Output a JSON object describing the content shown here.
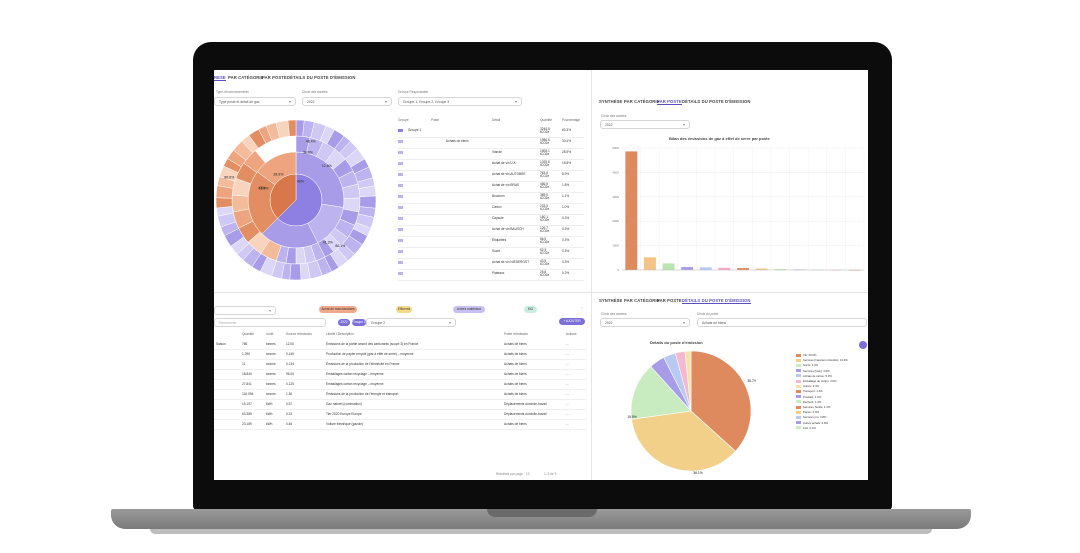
{
  "colors": {
    "purple": "#a89ce8",
    "purple_dark": "#7c6fd8",
    "orange": "#de8a5e",
    "orange_light": "#f2b795",
    "accent": "#5b4fc4"
  },
  "left": {
    "tabs": [
      "RESE",
      "PAR CATÉGORIE",
      "PAR POSTE",
      "DÉTAILS DU POSTE D'ÉMISSION"
    ],
    "filters": [
      {
        "label": "Type d'environnements",
        "value": "Type poste et détail de gaz"
      },
      {
        "label": "Choix des années",
        "value": "2022"
      },
      {
        "label": "Groupe Responsable",
        "value": "Groupe 1, Groupe 2, Groupe 3"
      }
    ],
    "sunburst_labels": [
      "86.1%",
      "48.4%",
      "40%",
      "43%",
      "41.3%",
      "16.8%",
      "12.6%",
      "38.6%",
      "28.9%",
      "88.8%"
    ],
    "table": {
      "headers": [
        "Groupe",
        "Poste",
        "Détail",
        "Quantité",
        "Pourcentage"
      ],
      "rows": [
        {
          "group": "Groupe 1",
          "poste": "",
          "detail": "",
          "qty": "3245.5 tCO2e",
          "pct": "60.3%"
        },
        {
          "group": "",
          "poste": "Achats de biens",
          "detail": "",
          "qty": "1986.6 tCO2e",
          "pct": "30.4%"
        },
        {
          "group": "",
          "poste": "",
          "detail": "Viande",
          "qty": "1508.1 tCO2e",
          "pct": "28.5%"
        },
        {
          "group": "",
          "poste": "",
          "detail": "Achat de vin U.K.",
          "qty": "1025.6 tCO2e",
          "pct": "15.8%"
        },
        {
          "group": "",
          "poste": "",
          "detail": "Achat de vin AUTOBRE",
          "qty": "763.6 tCO2e",
          "pct": "8.9%"
        },
        {
          "group": "",
          "poste": "",
          "detail": "Achat de vin BRAS",
          "qty": "456.5 tCO2e",
          "pct": "1.8%"
        },
        {
          "group": "",
          "poste": "",
          "detail": "Bouchon",
          "qty": "389.5 tCO2e",
          "pct": "1.1%"
        },
        {
          "group": "",
          "poste": "",
          "detail": "Carton",
          "qty": "233.5 tCO2e",
          "pct": "1.0%"
        },
        {
          "group": "",
          "poste": "",
          "detail": "Capsule",
          "qty": "160.1 tCO2e",
          "pct": "0.3%"
        },
        {
          "group": "",
          "poste": "",
          "detail": "Achat de vin BAUSCH",
          "qty": "126.7 tCO2e",
          "pct": "0.3%"
        },
        {
          "group": "",
          "poste": "",
          "detail": "Étiquettes",
          "qty": "66.5 tCO2e",
          "pct": "0.3%"
        },
        {
          "group": "",
          "poste": "",
          "detail": "Sucre",
          "qty": "52.3 tCO2e",
          "pct": "0.3%"
        },
        {
          "group": "",
          "poste": "",
          "detail": "Achat de vin NIEDERGST",
          "qty": "43.5 tCO2e",
          "pct": "0.3%"
        },
        {
          "group": "",
          "poste": "",
          "detail": "Plateaux",
          "qty": "25.8 tCO2e",
          "pct": "0.2%"
        }
      ]
    },
    "bottom": {
      "chips": [
        "Achat de marchandises",
        "Effluents",
        "Autres matériaux",
        "MG"
      ],
      "search_placeholder": "Rechercher",
      "filter_tags": [
        "2022",
        "Groupe 1",
        "Groupe 2"
      ],
      "add_button": "+ AJOUTER",
      "headers": [
        "",
        "Quantité",
        "Unité",
        "Source d'émission",
        "Libellé / Description",
        "Poste d'émission",
        "Actions"
      ],
      "rows": [
        [
          "Saison",
          "766",
          "tonnes",
          "12.00",
          "Émissions de la partie amont des carburants (scope 3) en France",
          "Achats de biens",
          "..."
        ],
        [
          "",
          "1.296",
          "tonnes",
          "0.146",
          "Production de papier recyclé (gaz à effet de serre) – moyenne",
          "Achats de biens",
          "..."
        ],
        [
          "",
          "11",
          "tonnes",
          "0.134",
          "Émissions de la production de l'électricité en France",
          "Achats de biens",
          "..."
        ],
        [
          "",
          "18.840",
          "tonnes",
          "96.00",
          "Emballages carton recyclage – moyenne",
          "Achats de biens",
          "..."
        ],
        [
          "",
          "27.841",
          "tonnes",
          "0.125",
          "Emballages carton recyclage – moyenne",
          "Achats de biens",
          "..."
        ],
        [
          "",
          "116.094",
          "tonnes",
          "1.30",
          "Émissions de la production de l'énergie et transport",
          "Achats de biens",
          "..."
        ],
        [
          "",
          "15.197",
          "kWh",
          "0.57",
          "Gaz naturel (combustion)",
          "Déplacements domicile-travail",
          "..."
        ],
        [
          "",
          "63.389",
          "kWh",
          "0.23",
          "Tier 2020 Europe Europe",
          "Déplacements domicile-travail",
          "..."
        ],
        [
          "",
          "23.189",
          "kWh",
          "0.46",
          "Voiture électrique (gazole)",
          "Achats de biens",
          "..."
        ]
      ],
      "pagination": {
        "rows_label": "Résultats par page",
        "rows_value": "10",
        "range": "1–9 de 9"
      }
    }
  },
  "right_top": {
    "tabs": [
      "SYNTHÈSE",
      "PAR CATÉGORIE",
      "PAR POSTE",
      "DÉTAILS DU POSTE D'ÉMISSION"
    ],
    "filter_label": "Choix des années",
    "filter_value": "2022",
    "chart_title": "Bilan des émissions de gaz à effet de serre par poste"
  },
  "right_bottom": {
    "tabs": [
      "SYNTHÈSE",
      "PAR CATÉGORIE",
      "PAR POSTE",
      "DÉTAILS DU POSTE D'ÉMISSION"
    ],
    "filter_label": "Choix des années",
    "filter_value": "2022",
    "filter2_label": "Choix du poste",
    "filter2_value": "Achats de biens",
    "chart_title": "Détails du poste d'émission",
    "pie_labels": [
      "36.7%",
      "36.1%",
      "15.5%"
    ],
    "legend": [
      "Vin: 36.6%",
      "Services financiers (intérêts): 31.9%",
      "Sucre: 1.0%",
      "Services (frais): 3.0%",
      "Achats de carton: 5.3%",
      "Emballage de carton: 2.5%",
      "Autres: 3.4%",
      "Transport: 1.6%",
      "Produits: 1.0%",
      "Déchets: 1.4%",
      "Services Textile: 1.1%",
      "Papier: 0.9%",
      "Services pro: 0.8%",
      "Autres achats: 0.8%",
      "Fret: 0.4%"
    ]
  },
  "chart_data": [
    {
      "type": "bar",
      "title": "Bilan des émissions de gaz à effet de serre par poste",
      "categories": [
        "1",
        "2",
        "3",
        "4",
        "5",
        "6",
        "7",
        "8",
        "9",
        "10",
        "11",
        "12",
        "13"
      ],
      "values": [
        4860,
        520,
        270,
        120,
        110,
        90,
        80,
        60,
        40,
        20,
        10,
        8,
        5
      ],
      "ylim": [
        0,
        5000
      ],
      "ylabel": "",
      "colors": [
        "#de8a5e",
        "#f3c486",
        "#b9e6b0",
        "#a89ce8",
        "#b8c9f2",
        "#f2a7c6",
        "#de8a5e",
        "#f3c486",
        "#b9e6b0",
        "#a89ce8",
        "#b8c9f2",
        "#f2a7c6",
        "#de8a5e"
      ]
    },
    {
      "type": "pie",
      "title": "Détails du poste d'émission",
      "values": [
        36.7,
        36.1,
        15.5,
        4.2,
        3.3,
        2.6,
        1.6
      ],
      "colors": [
        "#de8a5e",
        "#f3d089",
        "#c8ecc0",
        "#a89ce8",
        "#b8c9f2",
        "#f6b8d0",
        "#f6e1a8"
      ]
    }
  ]
}
